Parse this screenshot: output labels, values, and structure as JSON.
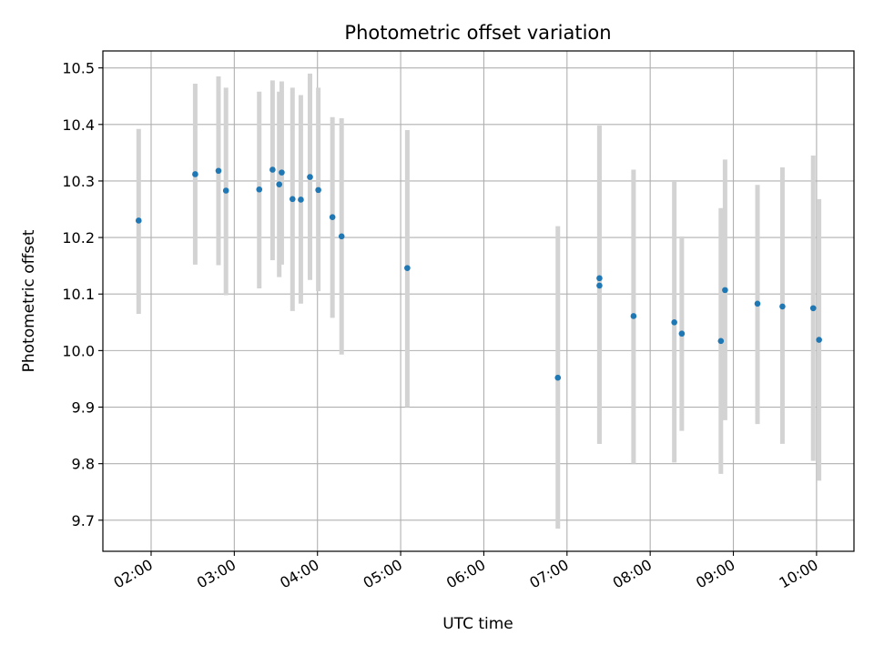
{
  "chart_data": {
    "type": "scatter",
    "title": "Photometric offset variation",
    "xlabel": "UTC time",
    "ylabel": "Photometric offset",
    "x_unit": "hours UTC",
    "xlim": [
      1.42,
      10.45
    ],
    "ylim": [
      9.645,
      10.53
    ],
    "x_ticks": [
      {
        "value": 2,
        "label": "02:00"
      },
      {
        "value": 3,
        "label": "03:00"
      },
      {
        "value": 4,
        "label": "04:00"
      },
      {
        "value": 5,
        "label": "05:00"
      },
      {
        "value": 6,
        "label": "06:00"
      },
      {
        "value": 7,
        "label": "07:00"
      },
      {
        "value": 8,
        "label": "08:00"
      },
      {
        "value": 9,
        "label": "09:00"
      },
      {
        "value": 10,
        "label": "10:00"
      }
    ],
    "y_ticks": [
      {
        "value": 9.7,
        "label": "9.7"
      },
      {
        "value": 9.8,
        "label": "9.8"
      },
      {
        "value": 9.9,
        "label": "9.9"
      },
      {
        "value": 10.0,
        "label": "10.0"
      },
      {
        "value": 10.1,
        "label": "10.1"
      },
      {
        "value": 10.2,
        "label": "10.2"
      },
      {
        "value": 10.3,
        "label": "10.3"
      },
      {
        "value": 10.4,
        "label": "10.4"
      },
      {
        "value": 10.5,
        "label": "10.5"
      }
    ],
    "grid": true,
    "legend": "none",
    "marker_color": "#1f77b4",
    "errorbar_color": "#d3d3d3",
    "points": [
      {
        "x": 1.85,
        "y": 10.23,
        "err_low": 10.065,
        "err_high": 10.392
      },
      {
        "x": 2.53,
        "y": 10.312,
        "err_low": 10.152,
        "err_high": 10.472
      },
      {
        "x": 2.81,
        "y": 10.318,
        "err_low": 10.151,
        "err_high": 10.485
      },
      {
        "x": 2.9,
        "y": 10.283,
        "err_low": 10.098,
        "err_high": 10.465
      },
      {
        "x": 3.3,
        "y": 10.285,
        "err_low": 10.11,
        "err_high": 10.458
      },
      {
        "x": 3.46,
        "y": 10.32,
        "err_low": 10.16,
        "err_high": 10.478
      },
      {
        "x": 3.54,
        "y": 10.294,
        "err_low": 10.13,
        "err_high": 10.458
      },
      {
        "x": 3.57,
        "y": 10.315,
        "err_low": 10.152,
        "err_high": 10.476
      },
      {
        "x": 3.7,
        "y": 10.268,
        "err_low": 10.07,
        "err_high": 10.465
      },
      {
        "x": 3.8,
        "y": 10.267,
        "err_low": 10.083,
        "err_high": 10.452
      },
      {
        "x": 3.91,
        "y": 10.307,
        "err_low": 10.125,
        "err_high": 10.49
      },
      {
        "x": 4.01,
        "y": 10.284,
        "err_low": 10.105,
        "err_high": 10.465
      },
      {
        "x": 4.18,
        "y": 10.236,
        "err_low": 10.058,
        "err_high": 10.413
      },
      {
        "x": 4.29,
        "y": 10.202,
        "err_low": 9.993,
        "err_high": 10.411
      },
      {
        "x": 5.08,
        "y": 10.146,
        "err_low": 9.9,
        "err_high": 10.39
      },
      {
        "x": 6.89,
        "y": 9.952,
        "err_low": 9.685,
        "err_high": 10.22
      },
      {
        "x": 7.39,
        "y": 10.128,
        "err_low": 9.835,
        "err_high": 10.398
      },
      {
        "x": 7.39,
        "y": 10.115,
        "err_low": 9.835,
        "err_high": 10.398
      },
      {
        "x": 7.8,
        "y": 10.061,
        "err_low": 9.8,
        "err_high": 10.32
      },
      {
        "x": 8.29,
        "y": 10.05,
        "err_low": 9.802,
        "err_high": 10.3
      },
      {
        "x": 8.38,
        "y": 10.03,
        "err_low": 9.858,
        "err_high": 10.202
      },
      {
        "x": 8.85,
        "y": 10.017,
        "err_low": 9.782,
        "err_high": 10.252
      },
      {
        "x": 8.9,
        "y": 10.107,
        "err_low": 9.877,
        "err_high": 10.338
      },
      {
        "x": 9.29,
        "y": 10.083,
        "err_low": 9.87,
        "err_high": 10.293
      },
      {
        "x": 9.59,
        "y": 10.078,
        "err_low": 9.835,
        "err_high": 10.324
      },
      {
        "x": 9.96,
        "y": 10.075,
        "err_low": 9.805,
        "err_high": 10.345
      },
      {
        "x": 10.03,
        "y": 10.019,
        "err_low": 9.77,
        "err_high": 10.268
      }
    ]
  }
}
